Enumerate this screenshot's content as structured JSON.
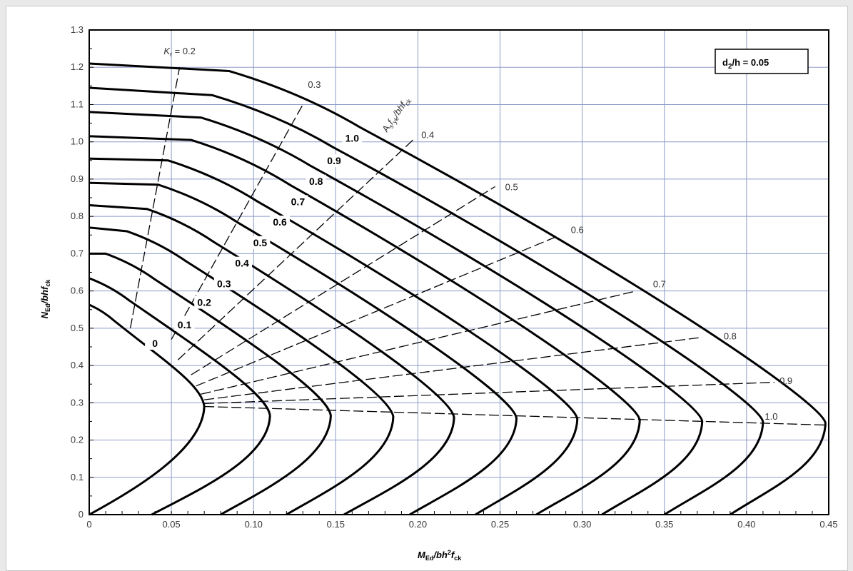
{
  "chart_data": {
    "type": "line",
    "title": "",
    "xlabel": {
      "main": "M",
      "sub": "Ed",
      "rest": "/bh",
      "sup": "2",
      "tail": "f",
      "sub2": "ck"
    },
    "ylabel": {
      "main": "N",
      "sub": "Ed",
      "rest": "/bhf",
      "sub2": "ck"
    },
    "xlim": [
      0,
      0.45
    ],
    "ylim": [
      0,
      1.3
    ],
    "xticks": [
      0,
      0.05,
      0.1,
      0.15,
      0.2,
      0.25,
      0.3,
      0.35,
      0.4,
      0.45
    ],
    "xtick_labels": [
      "0",
      "0.05",
      "0.10",
      "0.15",
      "0.20",
      "0.25",
      "0.30",
      "0.35",
      "0.40",
      "0.45"
    ],
    "yticks": [
      0,
      0.1,
      0.2,
      0.3,
      0.4,
      0.5,
      0.6,
      0.7,
      0.8,
      0.9,
      1.0,
      1.1,
      1.2,
      1.3
    ],
    "ytick_labels": [
      "0",
      "0.1",
      "0.2",
      "0.3",
      "0.4",
      "0.5",
      "0.6",
      "0.7",
      "0.8",
      "0.9",
      "1.0",
      "1.1",
      "1.2",
      "1.3"
    ],
    "grid": true,
    "annotation_box": {
      "main": "d",
      "sub": "2",
      "rest": "/h = 0.05"
    },
    "family_label": {
      "main": "A",
      "sub": "s",
      "rest": "f",
      "sub2": "yk",
      "tail": "/bhf",
      "sub3": "ck"
    },
    "series": [
      {
        "label": "0",
        "top_y": 0.563,
        "knee_x": 0.0,
        "knee_y": 0.563,
        "nose_x": 0.07,
        "nose_y": 0.29,
        "base_x": 0.0,
        "label_at": [
          0.04,
          0.45
        ]
      },
      {
        "label": "0.1",
        "top_y": 0.634,
        "knee_x": 0.0,
        "knee_y": 0.634,
        "nose_x": 0.11,
        "nose_y": 0.265,
        "base_x": 0.038,
        "label_at": [
          0.058,
          0.5
        ]
      },
      {
        "label": "0.2",
        "top_y": 0.7,
        "knee_x": 0.01,
        "knee_y": 0.7,
        "nose_x": 0.147,
        "nose_y": 0.265,
        "base_x": 0.08,
        "label_at": [
          0.07,
          0.56
        ]
      },
      {
        "label": "0.3",
        "top_y": 0.77,
        "knee_x": 0.023,
        "knee_y": 0.76,
        "nose_x": 0.185,
        "nose_y": 0.262,
        "base_x": 0.12,
        "label_at": [
          0.082,
          0.61
        ]
      },
      {
        "label": "0.4",
        "top_y": 0.83,
        "knee_x": 0.035,
        "knee_y": 0.82,
        "nose_x": 0.222,
        "nose_y": 0.26,
        "base_x": 0.155,
        "label_at": [
          0.093,
          0.665
        ]
      },
      {
        "label": "0.5",
        "top_y": 0.89,
        "knee_x": 0.042,
        "knee_y": 0.885,
        "nose_x": 0.26,
        "nose_y": 0.258,
        "base_x": 0.195,
        "label_at": [
          0.104,
          0.72
        ]
      },
      {
        "label": "0.6",
        "top_y": 0.955,
        "knee_x": 0.048,
        "knee_y": 0.95,
        "nose_x": 0.297,
        "nose_y": 0.256,
        "base_x": 0.235,
        "label_at": [
          0.116,
          0.775
        ]
      },
      {
        "label": "0.7",
        "top_y": 1.015,
        "knee_x": 0.062,
        "knee_y": 1.005,
        "nose_x": 0.335,
        "nose_y": 0.253,
        "base_x": 0.272,
        "label_at": [
          0.127,
          0.83
        ]
      },
      {
        "label": "0.8",
        "top_y": 1.08,
        "knee_x": 0.068,
        "knee_y": 1.065,
        "nose_x": 0.373,
        "nose_y": 0.25,
        "base_x": 0.312,
        "label_at": [
          0.138,
          0.885
        ]
      },
      {
        "label": "0.9",
        "top_y": 1.145,
        "knee_x": 0.075,
        "knee_y": 1.125,
        "nose_x": 0.41,
        "nose_y": 0.248,
        "base_x": 0.35,
        "label_at": [
          0.149,
          0.94
        ]
      },
      {
        "label": "1.0",
        "top_y": 1.21,
        "knee_x": 0.085,
        "knee_y": 1.19,
        "nose_x": 0.448,
        "nose_y": 0.245,
        "base_x": 0.39,
        "label_at": [
          0.16,
          1.0
        ]
      }
    ],
    "kt_lines": [
      {
        "label": "K",
        "sub": "r",
        "value_text": " = 0.2",
        "from": [
          0.025,
          0.5
        ],
        "to": [
          0.055,
          1.2
        ],
        "label_at": [
          0.055,
          1.235
        ]
      },
      {
        "label": "",
        "sub": "",
        "value_text": "0.3",
        "from": [
          0.05,
          0.47
        ],
        "to": [
          0.13,
          1.1
        ],
        "label_at": [
          0.137,
          1.145
        ]
      },
      {
        "label": "",
        "sub": "",
        "value_text": "0.4",
        "from": [
          0.054,
          0.415
        ],
        "to": [
          0.197,
          1.005
        ],
        "label_at": [
          0.206,
          1.01
        ]
      },
      {
        "label": "",
        "sub": "",
        "value_text": "0.5",
        "from": [
          0.062,
          0.375
        ],
        "to": [
          0.247,
          0.88
        ],
        "label_at": [
          0.257,
          0.87
        ]
      },
      {
        "label": "",
        "sub": "",
        "value_text": "0.6",
        "from": [
          0.065,
          0.345
        ],
        "to": [
          0.284,
          0.745
        ],
        "label_at": [
          0.297,
          0.755
        ]
      },
      {
        "label": "",
        "sub": "",
        "value_text": "0.7",
        "from": [
          0.068,
          0.323
        ],
        "to": [
          0.333,
          0.6
        ],
        "label_at": [
          0.347,
          0.61
        ]
      },
      {
        "label": "",
        "sub": "",
        "value_text": "0.8",
        "from": [
          0.07,
          0.308
        ],
        "to": [
          0.372,
          0.475
        ],
        "label_at": [
          0.39,
          0.47
        ]
      },
      {
        "label": "",
        "sub": "",
        "value_text": "0.9",
        "from": [
          0.07,
          0.298
        ],
        "to": [
          0.417,
          0.355
        ],
        "label_at": [
          0.424,
          0.35
        ]
      },
      {
        "label": "",
        "sub": "",
        "value_text": "1.0",
        "from": [
          0.07,
          0.29
        ],
        "to": [
          0.45,
          0.24
        ],
        "label_at": [
          0.415,
          0.255
        ]
      }
    ]
  }
}
